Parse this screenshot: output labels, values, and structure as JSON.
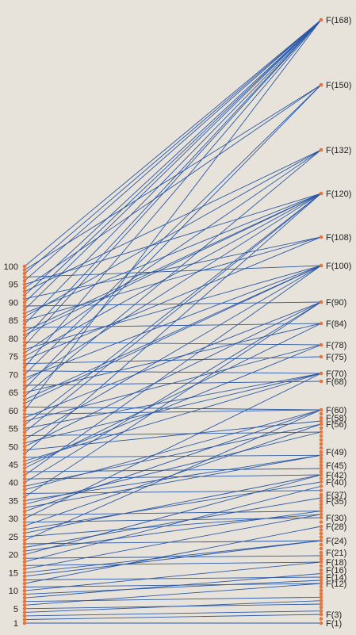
{
  "diagram": {
    "background": "#e8e3da",
    "line_color": "#2a58a6",
    "dot_color": "#e8743a",
    "left_range": [
      1,
      100
    ],
    "left_tick_labels": [
      "1",
      "5",
      "10",
      "15",
      "20",
      "25",
      "30",
      "35",
      "40",
      "45",
      "50",
      "55",
      "60",
      "65",
      "70",
      "75",
      "80",
      "85",
      "90",
      "95",
      "100"
    ],
    "right_nodes": [
      1,
      2,
      3,
      4,
      5,
      6,
      7,
      8,
      9,
      10,
      11,
      12,
      13,
      14,
      15,
      16,
      17,
      18,
      19,
      20,
      21,
      22,
      23,
      24,
      25,
      26,
      27,
      28,
      29,
      30,
      31,
      32,
      33,
      34,
      35,
      36,
      37,
      38,
      39,
      40,
      41,
      42,
      43,
      44,
      45,
      46,
      47,
      48,
      49,
      50,
      51,
      52,
      53,
      54,
      55,
      56,
      57,
      58,
      59,
      60,
      68,
      70,
      75,
      78,
      84,
      90,
      100,
      108,
      120,
      132,
      150,
      168
    ],
    "right_labels": [
      {
        "n": 1,
        "text": "F(1)"
      },
      {
        "n": 3,
        "text": "F(3)"
      },
      {
        "n": 12,
        "text": "F(12)"
      },
      {
        "n": 14,
        "text": "F(14)"
      },
      {
        "n": 16,
        "text": "F(16)"
      },
      {
        "n": 18,
        "text": "F(18)"
      },
      {
        "n": 21,
        "text": "F(21)"
      },
      {
        "n": 24,
        "text": "F(24)"
      },
      {
        "n": 28,
        "text": "F(28)"
      },
      {
        "n": 30,
        "text": "F(30)"
      },
      {
        "n": 35,
        "text": "F(35)"
      },
      {
        "n": 37,
        "text": "F(37)"
      },
      {
        "n": 40,
        "text": "F(40)"
      },
      {
        "n": 42,
        "text": "F(42)"
      },
      {
        "n": 45,
        "text": "F(45)"
      },
      {
        "n": 49,
        "text": "F(49)"
      },
      {
        "n": 56,
        "text": "F(56)"
      },
      {
        "n": 58,
        "text": "F(58)"
      },
      {
        "n": 60,
        "text": "F(60)"
      },
      {
        "n": 68,
        "text": "F(68)"
      },
      {
        "n": 70,
        "text": "F(70)"
      },
      {
        "n": 75,
        "text": "F(75)"
      },
      {
        "n": 78,
        "text": "F(78)"
      },
      {
        "n": 84,
        "text": "F(84)"
      },
      {
        "n": 90,
        "text": "F(90)"
      },
      {
        "n": 100,
        "text": "F(100)"
      },
      {
        "n": 108,
        "text": "F(108)"
      },
      {
        "n": 120,
        "text": "F(120)"
      },
      {
        "n": 132,
        "text": "F(132)"
      },
      {
        "n": 150,
        "text": "F(150)"
      },
      {
        "n": 168,
        "text": "F(168)"
      }
    ]
  }
}
